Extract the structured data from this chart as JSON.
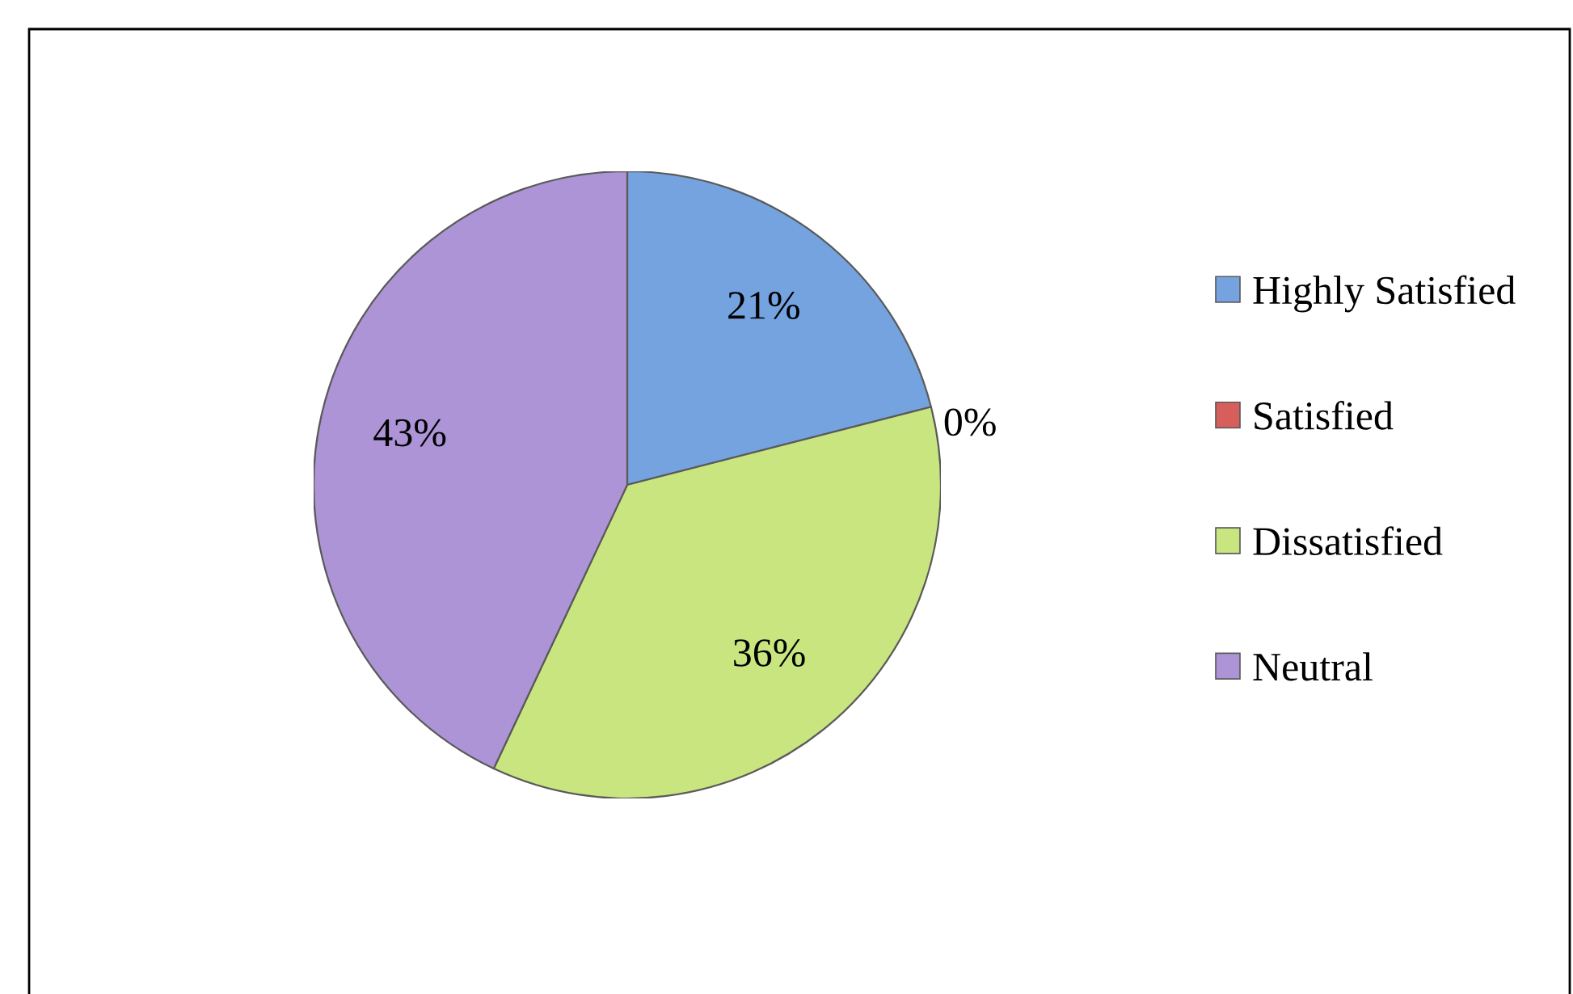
{
  "chart_data": {
    "type": "pie",
    "categories": [
      "Highly Satisfied",
      "Satisfied",
      "Dissatisfied",
      "Neutral"
    ],
    "values": [
      21,
      0,
      36,
      43
    ],
    "colors": [
      "#74a3e0",
      "#d65f5b",
      "#c9e57f",
      "#ad94d6"
    ],
    "value_labels": [
      "21%",
      "0%",
      "36%",
      "43%"
    ],
    "legend": "right"
  }
}
